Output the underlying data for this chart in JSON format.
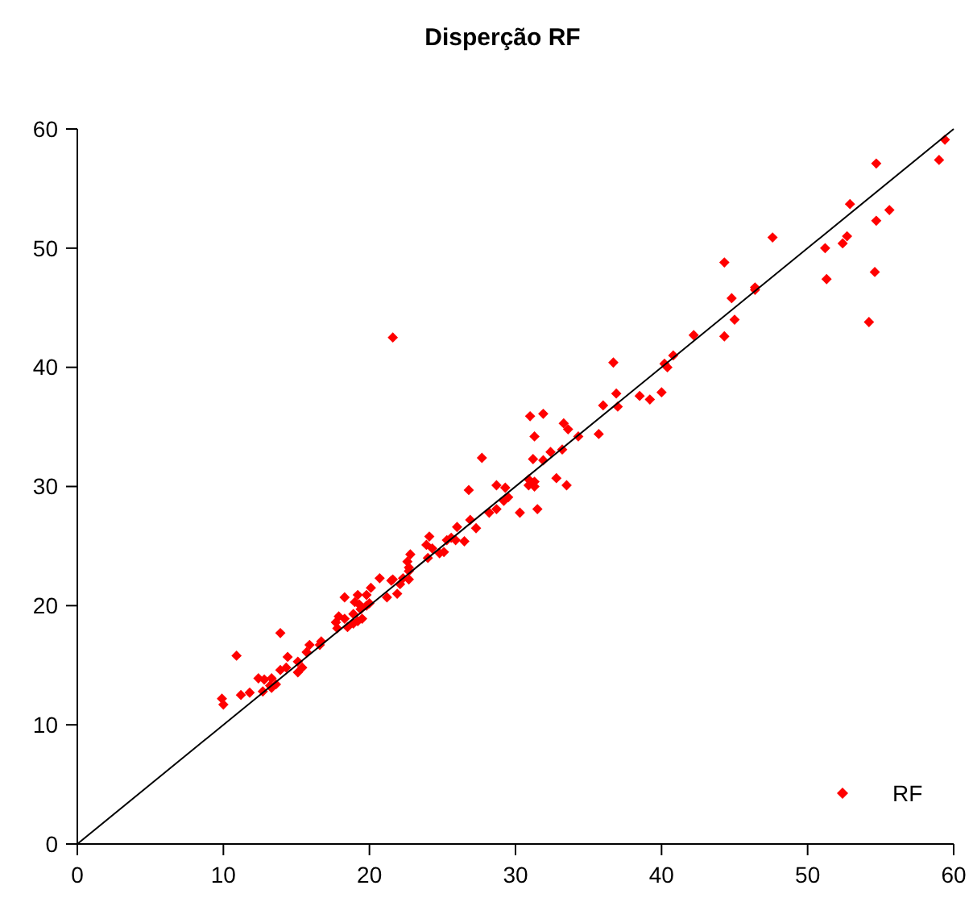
{
  "chart_data": {
    "type": "scatter",
    "title": "Disperção RF",
    "xlim": [
      0,
      60
    ],
    "ylim": [
      0,
      60
    ],
    "xticks": [
      0,
      10,
      20,
      30,
      40,
      50,
      60
    ],
    "yticks": [
      0,
      10,
      20,
      30,
      40,
      50,
      60
    ],
    "grid": false,
    "legend": "bottom right",
    "marker": "diamond",
    "series": [
      {
        "name": "RF",
        "color": "#ff0000",
        "x": [
          59.4,
          54.7,
          59.0,
          52.9,
          55.6,
          54.7,
          47.6,
          52.7,
          52.4,
          51.2,
          44.3,
          51.3,
          54.6,
          54.2,
          44.8,
          46.4,
          46.4,
          45.0,
          42.2,
          44.3,
          40.8,
          40.2,
          40.4,
          36.7,
          36.9,
          38.5,
          39.2,
          40.0,
          36.0,
          37.0,
          33.3,
          33.6,
          35.7,
          21.6,
          31.0,
          31.9,
          31.3,
          34.3,
          32.4,
          33.2,
          31.2,
          31.9,
          27.7,
          32.8,
          33.5,
          30.9,
          31.3,
          30.9,
          31.3,
          28.7,
          29.3,
          26.8,
          29.5,
          29.2,
          31.5,
          30.3,
          28.7,
          28.2,
          26.9,
          27.3,
          26.0,
          25.6,
          25.9,
          26.5,
          25.1,
          24.1,
          23.9,
          24.3,
          24.0,
          22.8,
          22.6,
          22.7,
          22.7,
          20.7,
          21.6,
          22.3,
          25.3,
          24.8,
          21.5,
          22.1,
          22.7,
          20.1,
          19.2,
          19.8,
          21.2,
          21.9,
          18.3,
          19.0,
          19.3,
          19.4,
          19.8,
          20.0,
          18.9,
          17.9,
          18.3,
          17.7,
          17.8,
          18.5,
          18.9,
          19.2,
          19.5,
          13.9,
          16.7,
          16.6,
          15.9,
          15.7,
          14.4,
          15.1,
          15.4,
          15.1,
          14.3,
          13.9,
          10.9,
          12.4,
          12.8,
          13.3,
          13.6,
          13.3,
          11.8,
          12.7,
          11.2,
          9.9,
          10.0,
          13.2
        ],
        "values": [
          59.1,
          57.1,
          57.4,
          53.7,
          53.2,
          52.3,
          50.9,
          51.0,
          50.4,
          50.0,
          48.8,
          47.4,
          48.0,
          43.8,
          45.8,
          46.7,
          46.5,
          44.0,
          42.7,
          42.6,
          41.0,
          40.3,
          40.0,
          40.4,
          37.8,
          37.6,
          37.3,
          37.9,
          36.8,
          36.7,
          35.3,
          34.8,
          34.4,
          42.5,
          35.9,
          36.1,
          34.2,
          34.2,
          32.9,
          33.1,
          32.3,
          32.2,
          32.4,
          30.7,
          30.1,
          30.6,
          30.4,
          30.1,
          30.0,
          30.1,
          29.9,
          29.7,
          29.1,
          28.8,
          28.1,
          27.8,
          28.1,
          27.8,
          27.2,
          26.5,
          26.6,
          25.7,
          25.5,
          25.4,
          24.5,
          25.8,
          25.1,
          24.8,
          24.0,
          24.3,
          23.7,
          23.2,
          22.9,
          22.3,
          22.2,
          22.3,
          25.5,
          24.4,
          22.1,
          21.8,
          22.2,
          21.5,
          20.9,
          20.9,
          20.7,
          21.0,
          20.7,
          20.3,
          20.1,
          19.7,
          20.0,
          20.2,
          19.3,
          19.1,
          18.9,
          18.6,
          18.1,
          18.2,
          18.5,
          18.7,
          18.9,
          17.7,
          17.0,
          16.7,
          16.7,
          16.1,
          15.7,
          15.3,
          14.8,
          14.4,
          14.8,
          14.6,
          15.8,
          13.9,
          13.8,
          13.9,
          13.4,
          13.1,
          12.7,
          12.8,
          12.5,
          12.2,
          11.7,
          13.3
        ]
      },
      {
        "type": "line",
        "color": "#000000",
        "marker": "none",
        "x": [
          0,
          60
        ],
        "values": [
          0,
          60
        ]
      }
    ]
  }
}
